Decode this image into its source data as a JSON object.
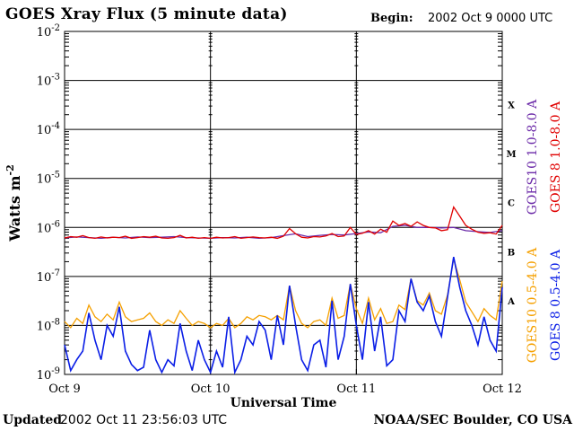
{
  "header": {
    "title": "GOES Xray Flux (5 minute data)",
    "begin_label": "Begin:",
    "begin_value": "2002 Oct 9 0000 UTC"
  },
  "footer": {
    "updated_label": "Updated",
    "updated_value": "2002 Oct 11 23:56:03 UTC",
    "credit": "NOAA/SEC Boulder, CO USA"
  },
  "chart_data": {
    "type": "line",
    "title": "GOES Xray Flux (5 minute data)",
    "xlabel": "Universal Time",
    "ylabel": "Watts m-2",
    "y_scale": "log",
    "ylim": [
      1e-09,
      0.01
    ],
    "xlim_hours": [
      0,
      72
    ],
    "y_tick_labels": [
      "10-9",
      "10-8",
      "10-7",
      "10-6",
      "10-5",
      "10-4",
      "10-3",
      "10-2"
    ],
    "x_tick_labels": [
      "Oct 9",
      "Oct 10",
      "Oct 11",
      "Oct 12"
    ],
    "flare_classes": [
      "A",
      "B",
      "C",
      "M",
      "X"
    ],
    "grid": true,
    "legend_placement": "right",
    "series": [
      {
        "name": "GOES10 1.0-8.0 A",
        "color": "#6b2aa8",
        "x_hours": [
          0,
          2,
          4,
          6,
          8,
          10,
          12,
          14,
          16,
          18,
          20,
          22,
          24,
          26,
          28,
          30,
          32,
          34,
          36,
          38,
          40,
          42,
          44,
          46,
          48,
          50,
          52,
          54,
          56,
          58,
          60,
          62,
          64,
          66,
          68,
          70,
          72
        ],
        "values": [
          6.1e-07,
          6.4e-07,
          6.2e-07,
          6e-07,
          6.3e-07,
          6.1e-07,
          6.4e-07,
          6.2e-07,
          6.3e-07,
          6.5e-07,
          6.2e-07,
          6.1e-07,
          6e-07,
          6.2e-07,
          6.1e-07,
          6.3e-07,
          6e-07,
          6.2e-07,
          6.8e-07,
          7.4e-07,
          6.5e-07,
          6.9e-07,
          7.2e-07,
          7e-07,
          7.5e-07,
          8.1e-07,
          7.8e-07,
          1.05e-06,
          1.1e-06,
          1e-06,
          1e-06,
          9.8e-07,
          1e-06,
          8.6e-07,
          8.2e-07,
          7.9e-07,
          8.6e-07
        ]
      },
      {
        "name": "GOES 8 1.0-8.0 A",
        "color": "#e00000",
        "x_hours": [
          0,
          1,
          2,
          3,
          4,
          5,
          6,
          7,
          8,
          9,
          10,
          11,
          12,
          13,
          14,
          15,
          16,
          17,
          18,
          19,
          20,
          21,
          22,
          23,
          24,
          25,
          26,
          27,
          28,
          29,
          30,
          31,
          32,
          33,
          34,
          35,
          36,
          37,
          38,
          39,
          40,
          41,
          42,
          43,
          44,
          45,
          46,
          47,
          48,
          49,
          50,
          51,
          52,
          53,
          54,
          55,
          56,
          57,
          58,
          59,
          60,
          61,
          62,
          63,
          64,
          65,
          66,
          67,
          68,
          69,
          70,
          71,
          72
        ],
        "values": [
          6.1e-07,
          6.5e-07,
          6.3e-07,
          6.8e-07,
          6.2e-07,
          6e-07,
          6.4e-07,
          6.1e-07,
          6.3e-07,
          6.2e-07,
          6.6e-07,
          6e-07,
          6.2e-07,
          6.5e-07,
          6.3e-07,
          6.6e-07,
          6.1e-07,
          6e-07,
          6.2e-07,
          6.9e-07,
          6.1e-07,
          6.3e-07,
          6e-07,
          6.2e-07,
          6e-07,
          6.3e-07,
          6.1e-07,
          6.2e-07,
          6.5e-07,
          6e-07,
          6.2e-07,
          6.4e-07,
          6.2e-07,
          6.1e-07,
          6.3e-07,
          6e-07,
          6.6e-07,
          9.5e-07,
          7.4e-07,
          6.3e-07,
          6.1e-07,
          6.5e-07,
          6.4e-07,
          6.7e-07,
          7.5e-07,
          6.5e-07,
          6.7e-07,
          1e-06,
          7.2e-07,
          7.6e-07,
          8.6e-07,
          7.3e-07,
          9.2e-07,
          8e-07,
          1.35e-06,
          1.1e-06,
          1.2e-06,
          1.05e-06,
          1.3e-06,
          1.1e-06,
          1e-06,
          9.8e-07,
          8.6e-07,
          9e-07,
          2.6e-06,
          1.7e-06,
          1.1e-06,
          9.2e-07,
          8e-07,
          7.6e-07,
          7.8e-07,
          7.3e-07,
          1.1e-06
        ]
      },
      {
        "name": "GOES10 0.5-4.0 A",
        "color": "#f5a000",
        "x_hours": [
          0,
          1,
          2,
          3,
          4,
          5,
          6,
          7,
          8,
          9,
          10,
          11,
          12,
          13,
          14,
          15,
          16,
          17,
          18,
          19,
          20,
          21,
          22,
          23,
          24,
          25,
          26,
          27,
          28,
          29,
          30,
          31,
          32,
          33,
          34,
          35,
          36,
          37,
          38,
          39,
          40,
          41,
          42,
          43,
          44,
          45,
          46,
          47,
          48,
          49,
          50,
          51,
          52,
          53,
          54,
          55,
          56,
          57,
          58,
          59,
          60,
          61,
          62,
          63,
          64,
          65,
          66,
          67,
          68,
          69,
          70,
          71,
          72
        ],
        "values": [
          1.2e-08,
          9e-09,
          1.4e-08,
          1.1e-08,
          2.6e-08,
          1.5e-08,
          1.2e-08,
          1.7e-08,
          1.3e-08,
          3e-08,
          1.5e-08,
          1.2e-08,
          1.3e-08,
          1.4e-08,
          1.8e-08,
          1.2e-08,
          1e-08,
          1.3e-08,
          1.1e-08,
          2e-08,
          1.4e-08,
          1e-08,
          1.2e-08,
          1.1e-08,
          9e-09,
          1.1e-08,
          1e-08,
          1.4e-08,
          9e-09,
          1.1e-08,
          1.5e-08,
          1.3e-08,
          1.6e-08,
          1.5e-08,
          1.3e-08,
          1.6e-08,
          1.3e-08,
          6.5e-08,
          2e-08,
          1.1e-08,
          9e-09,
          1.2e-08,
          1.3e-08,
          1e-08,
          3.6e-08,
          1.4e-08,
          1.6e-08,
          7e-08,
          2.2e-08,
          1.1e-08,
          3.6e-08,
          1.3e-08,
          2.2e-08,
          1.1e-08,
          1.2e-08,
          2.6e-08,
          2.1e-08,
          9e-08,
          3.2e-08,
          2.6e-08,
          4.6e-08,
          2e-08,
          1.7e-08,
          4.2e-08,
          2.3e-07,
          8.5e-08,
          3e-08,
          1.9e-08,
          1.2e-08,
          2.2e-08,
          1.6e-08,
          1.3e-08,
          8e-08
        ]
      },
      {
        "name": "GOES 8 0.5-4.0 A",
        "color": "#0a1ee6",
        "x_hours": [
          0,
          1,
          2,
          3,
          4,
          5,
          6,
          7,
          8,
          9,
          10,
          11,
          12,
          13,
          14,
          15,
          16,
          17,
          18,
          19,
          20,
          21,
          22,
          23,
          24,
          25,
          26,
          27,
          28,
          29,
          30,
          31,
          32,
          33,
          34,
          35,
          36,
          37,
          38,
          39,
          40,
          41,
          42,
          43,
          44,
          45,
          46,
          47,
          48,
          49,
          50,
          51,
          52,
          53,
          54,
          55,
          56,
          57,
          58,
          59,
          60,
          61,
          62,
          63,
          64,
          65,
          66,
          67,
          68,
          69,
          70,
          71,
          72
        ],
        "values": [
          4e-09,
          1.2e-09,
          2e-09,
          3e-09,
          1.8e-08,
          5e-09,
          2e-09,
          1e-08,
          6e-09,
          2.4e-08,
          3e-09,
          1.6e-09,
          1.2e-09,
          1.4e-09,
          8e-09,
          2e-09,
          1.1e-09,
          2e-09,
          1.5e-09,
          1.1e-08,
          3e-09,
          1.2e-09,
          5e-09,
          2e-09,
          1.1e-09,
          3e-09,
          1.4e-09,
          1.5e-08,
          1.1e-09,
          2e-09,
          6e-09,
          4e-09,
          1.2e-08,
          8e-09,
          2e-09,
          1.6e-08,
          4e-09,
          6.5e-08,
          1e-08,
          2e-09,
          1.2e-09,
          4e-09,
          5e-09,
          1.4e-09,
          3.2e-08,
          2e-09,
          6e-09,
          7e-08,
          1e-08,
          2e-09,
          3e-08,
          3e-09,
          1.5e-08,
          1.5e-09,
          2e-09,
          2e-08,
          1.2e-08,
          9e-08,
          3e-08,
          2e-08,
          4e-08,
          1.2e-08,
          6e-09,
          3.8e-08,
          2.5e-07,
          6e-08,
          2e-08,
          1e-08,
          4e-09,
          1.5e-08,
          5e-09,
          3e-09,
          6e-08
        ]
      }
    ]
  }
}
